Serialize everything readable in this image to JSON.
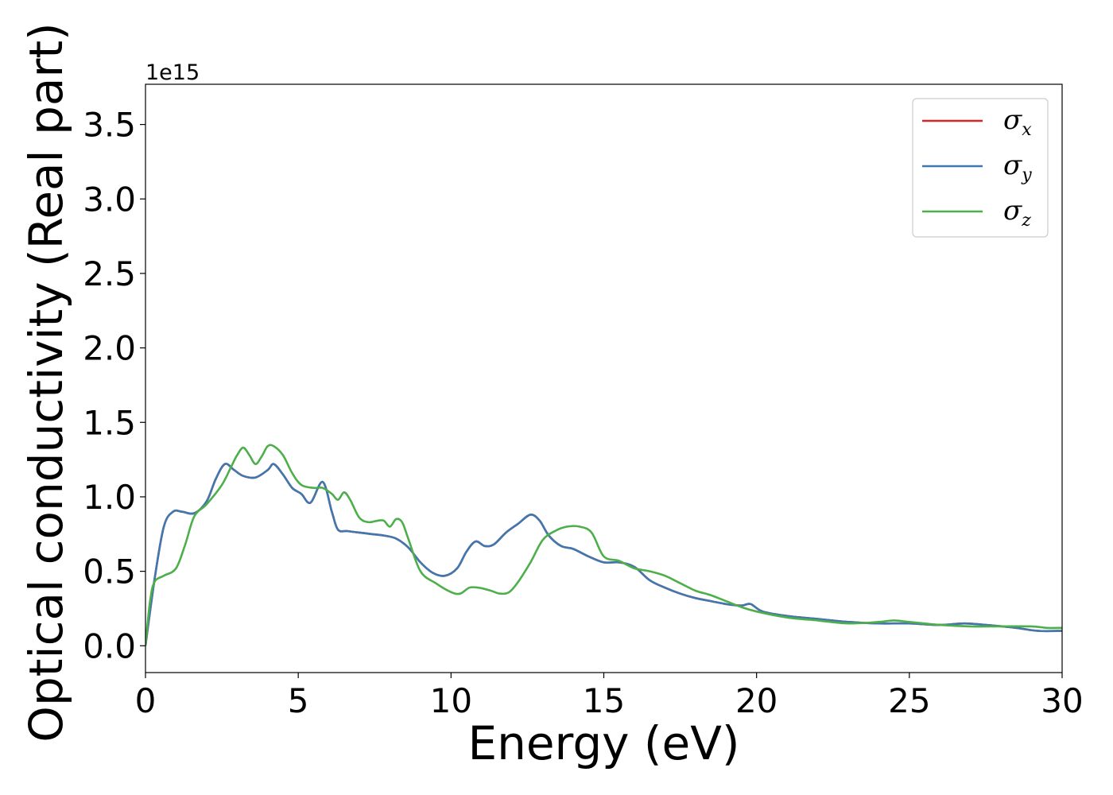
{
  "chart_data": {
    "type": "line",
    "xlabel": "Energy (eV)",
    "ylabel": "Optical conductivity (Real part)",
    "y_offset_label": "1e15",
    "xlim": [
      0,
      30
    ],
    "ylim": [
      -0.18,
      3.77
    ],
    "x_ticks": [
      0,
      5,
      10,
      15,
      20,
      25,
      30
    ],
    "x_tick_labels": [
      "0",
      "5",
      "10",
      "15",
      "20",
      "25",
      "30"
    ],
    "y_ticks": [
      0.0,
      0.5,
      1.0,
      1.5,
      2.0,
      2.5,
      3.0,
      3.5
    ],
    "y_tick_labels": [
      "0.0",
      "0.5",
      "1.0",
      "1.5",
      "2.0",
      "2.5",
      "3.0",
      "3.5"
    ],
    "grid": false,
    "legend_position": "top-right",
    "series": [
      {
        "name": "σx",
        "symbol": "σ",
        "subscript": "x",
        "color": "#d62728",
        "x": [
          0,
          0.3,
          0.6,
          0.9,
          1.2,
          1.6,
          2.0,
          2.3,
          2.6,
          2.9,
          3.2,
          3.6,
          4.0,
          4.2,
          4.5,
          4.8,
          5.1,
          5.4,
          5.8,
          6.1,
          6.3,
          6.6,
          7.0,
          7.4,
          7.8,
          8.2,
          8.6,
          9.0,
          9.4,
          9.8,
          10.2,
          10.5,
          10.8,
          11.1,
          11.4,
          11.8,
          12.2,
          12.6,
          12.9,
          13.2,
          13.6,
          14.0,
          14.5,
          15.0,
          15.5,
          16.0,
          16.5,
          17.0,
          17.5,
          18.0,
          18.5,
          19.0,
          19.5,
          19.8,
          20.2,
          21.0,
          22.0,
          23.0,
          24.0,
          25.0,
          26.0,
          26.8,
          27.5,
          28.5,
          29.2,
          30.0
        ],
        "y": [
          0.0,
          0.45,
          0.8,
          0.9,
          0.9,
          0.89,
          0.97,
          1.12,
          1.22,
          1.18,
          1.14,
          1.13,
          1.18,
          1.22,
          1.15,
          1.06,
          1.02,
          0.96,
          1.1,
          0.9,
          0.78,
          0.77,
          0.76,
          0.75,
          0.74,
          0.72,
          0.66,
          0.56,
          0.49,
          0.47,
          0.52,
          0.63,
          0.7,
          0.67,
          0.68,
          0.76,
          0.82,
          0.88,
          0.84,
          0.74,
          0.67,
          0.65,
          0.6,
          0.56,
          0.56,
          0.53,
          0.44,
          0.39,
          0.35,
          0.32,
          0.3,
          0.28,
          0.27,
          0.28,
          0.23,
          0.2,
          0.18,
          0.16,
          0.15,
          0.15,
          0.14,
          0.15,
          0.14,
          0.12,
          0.1,
          0.1
        ]
      },
      {
        "name": "σy",
        "symbol": "σ",
        "subscript": "y",
        "color": "#3f78b0",
        "x": [
          0,
          0.3,
          0.6,
          0.9,
          1.2,
          1.6,
          2.0,
          2.3,
          2.6,
          2.9,
          3.2,
          3.6,
          4.0,
          4.2,
          4.5,
          4.8,
          5.1,
          5.4,
          5.8,
          6.1,
          6.3,
          6.6,
          7.0,
          7.4,
          7.8,
          8.2,
          8.6,
          9.0,
          9.4,
          9.8,
          10.2,
          10.5,
          10.8,
          11.1,
          11.4,
          11.8,
          12.2,
          12.6,
          12.9,
          13.2,
          13.6,
          14.0,
          14.5,
          15.0,
          15.5,
          16.0,
          16.5,
          17.0,
          17.5,
          18.0,
          18.5,
          19.0,
          19.5,
          19.8,
          20.2,
          21.0,
          22.0,
          23.0,
          24.0,
          25.0,
          26.0,
          26.8,
          27.5,
          28.5,
          29.2,
          30.0
        ],
        "y": [
          0.0,
          0.45,
          0.8,
          0.9,
          0.9,
          0.89,
          0.97,
          1.12,
          1.22,
          1.18,
          1.14,
          1.13,
          1.18,
          1.22,
          1.15,
          1.06,
          1.02,
          0.96,
          1.1,
          0.9,
          0.78,
          0.77,
          0.76,
          0.75,
          0.74,
          0.72,
          0.66,
          0.56,
          0.49,
          0.47,
          0.52,
          0.63,
          0.7,
          0.67,
          0.68,
          0.76,
          0.82,
          0.88,
          0.84,
          0.74,
          0.67,
          0.65,
          0.6,
          0.56,
          0.56,
          0.53,
          0.44,
          0.39,
          0.35,
          0.32,
          0.3,
          0.28,
          0.27,
          0.28,
          0.23,
          0.2,
          0.18,
          0.16,
          0.15,
          0.15,
          0.14,
          0.15,
          0.14,
          0.12,
          0.1,
          0.1
        ]
      },
      {
        "name": "σz",
        "symbol": "σ",
        "subscript": "z",
        "color": "#4daf4a",
        "x": [
          0,
          0.15,
          0.3,
          0.6,
          1.0,
          1.3,
          1.6,
          2.0,
          2.5,
          2.8,
          3.0,
          3.2,
          3.4,
          3.6,
          3.8,
          4.0,
          4.2,
          4.5,
          4.8,
          5.1,
          5.5,
          5.8,
          6.1,
          6.3,
          6.5,
          6.7,
          7.0,
          7.3,
          7.6,
          7.8,
          8.0,
          8.2,
          8.4,
          8.6,
          9.0,
          9.5,
          10.0,
          10.3,
          10.6,
          10.9,
          11.3,
          11.6,
          11.9,
          12.2,
          12.6,
          13.0,
          13.4,
          13.8,
          14.2,
          14.6,
          15.0,
          15.5,
          16.0,
          16.5,
          17.0,
          17.5,
          18.0,
          18.5,
          19.0,
          19.5,
          20.0,
          21.0,
          22.0,
          23.0,
          24.0,
          24.5,
          25.0,
          26.0,
          27.0,
          28.0,
          29.0,
          29.5,
          30.0
        ],
        "y": [
          0.0,
          0.3,
          0.43,
          0.47,
          0.52,
          0.68,
          0.87,
          0.95,
          1.08,
          1.2,
          1.28,
          1.33,
          1.28,
          1.22,
          1.27,
          1.34,
          1.34,
          1.28,
          1.16,
          1.08,
          1.06,
          1.06,
          1.02,
          0.98,
          1.03,
          0.98,
          0.86,
          0.83,
          0.84,
          0.84,
          0.8,
          0.85,
          0.83,
          0.72,
          0.5,
          0.42,
          0.36,
          0.35,
          0.39,
          0.39,
          0.37,
          0.35,
          0.36,
          0.43,
          0.56,
          0.71,
          0.77,
          0.8,
          0.8,
          0.76,
          0.6,
          0.57,
          0.52,
          0.5,
          0.47,
          0.42,
          0.37,
          0.34,
          0.3,
          0.26,
          0.23,
          0.19,
          0.17,
          0.15,
          0.16,
          0.17,
          0.16,
          0.14,
          0.13,
          0.13,
          0.13,
          0.12,
          0.12
        ]
      }
    ]
  }
}
